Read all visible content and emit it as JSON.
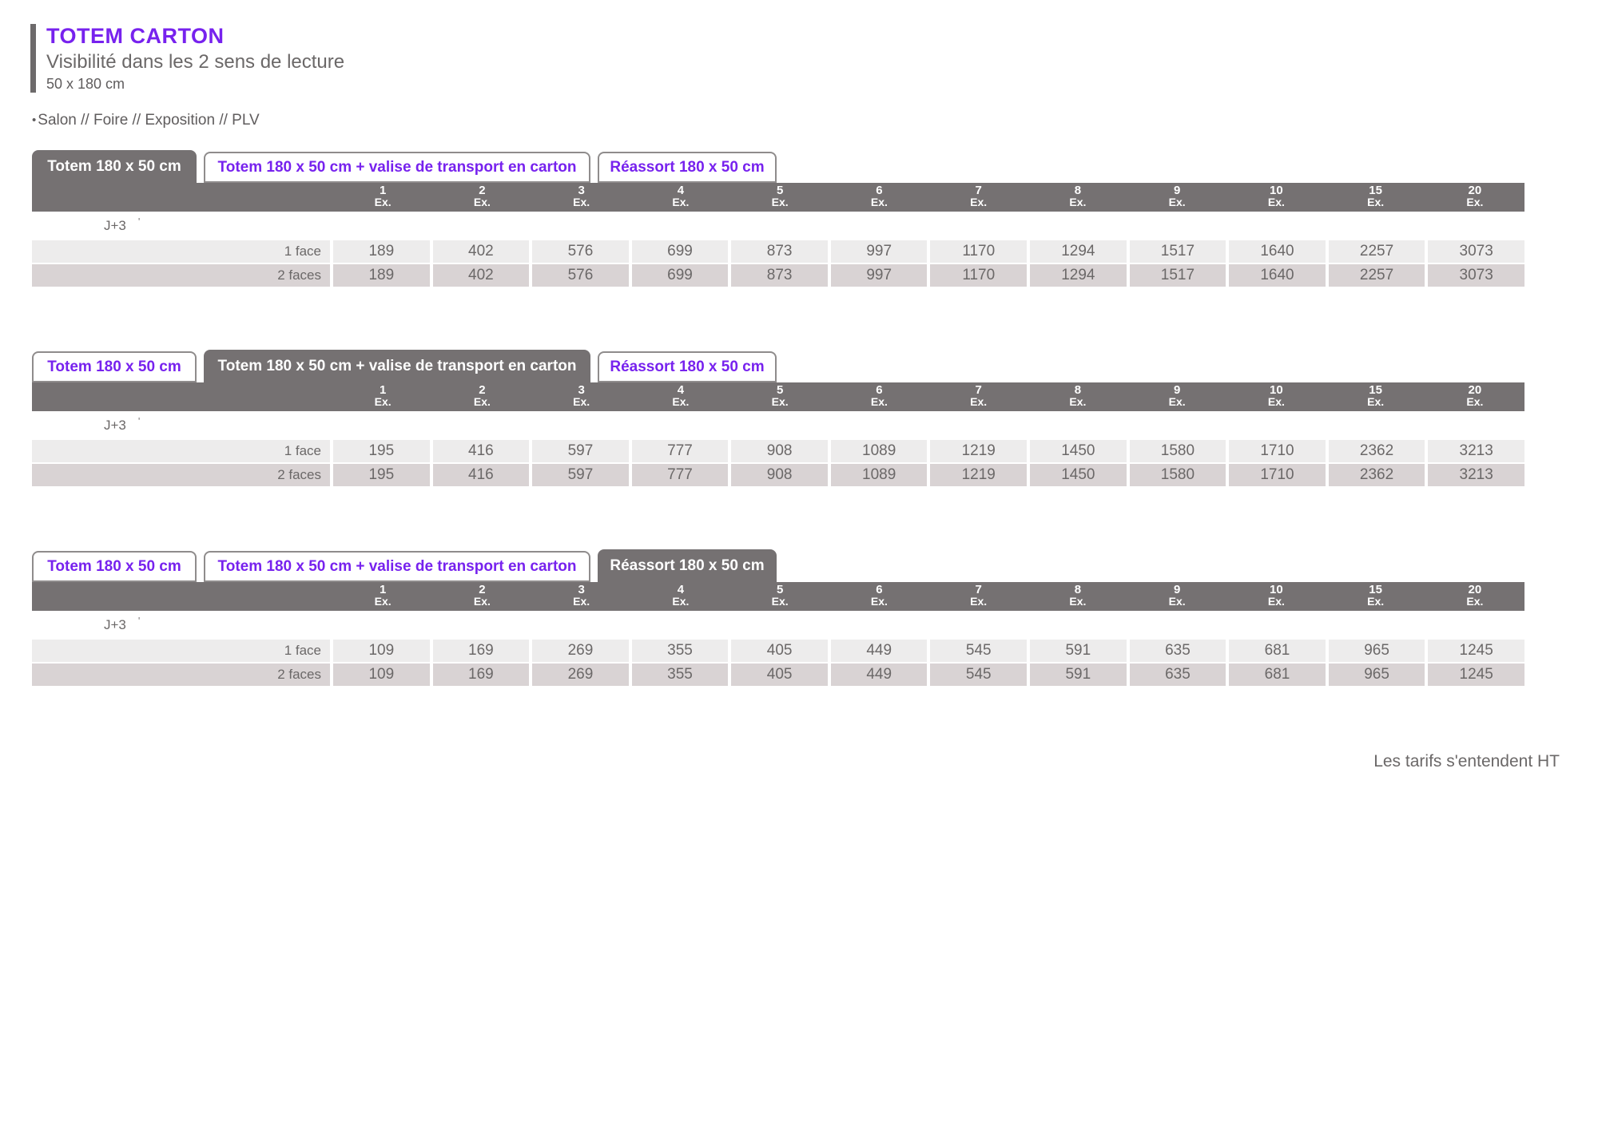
{
  "header": {
    "title": "TOTEM CARTON",
    "subtitle": "Visibilité dans les 2 sens de lecture",
    "size": "50 x 180 cm",
    "bullet": "•",
    "categories": "Salon // Foire // Exposition // PLV"
  },
  "tabs": {
    "labels": [
      "Totem 180 x 50 cm",
      "Totem 180 x 50 cm + valise de transport en carton",
      "Réassort 180 x 50 cm"
    ]
  },
  "columns": {
    "quantities": [
      "1",
      "2",
      "3",
      "4",
      "5",
      "6",
      "7",
      "8",
      "9",
      "10",
      "15",
      "20"
    ],
    "unit": "Ex."
  },
  "delay_label": "J+3",
  "delay_marker": "'",
  "tables": [
    {
      "active_tab": 0,
      "rows": [
        {
          "label": "1 face",
          "values": [
            189,
            402,
            576,
            699,
            873,
            997,
            1170,
            1294,
            1517,
            1640,
            2257,
            3073
          ]
        },
        {
          "label": "2 faces",
          "values": [
            189,
            402,
            576,
            699,
            873,
            997,
            1170,
            1294,
            1517,
            1640,
            2257,
            3073
          ]
        }
      ]
    },
    {
      "active_tab": 1,
      "rows": [
        {
          "label": "1 face",
          "values": [
            195,
            416,
            597,
            777,
            908,
            1089,
            1219,
            1450,
            1580,
            1710,
            2362,
            3213
          ]
        },
        {
          "label": "2 faces",
          "values": [
            195,
            416,
            597,
            777,
            908,
            1089,
            1219,
            1450,
            1580,
            1710,
            2362,
            3213
          ]
        }
      ]
    },
    {
      "active_tab": 2,
      "rows": [
        {
          "label": "1 face",
          "values": [
            109,
            169,
            269,
            355,
            405,
            449,
            545,
            591,
            635,
            681,
            965,
            1245
          ]
        },
        {
          "label": "2 faces",
          "values": [
            109,
            169,
            269,
            355,
            405,
            449,
            545,
            591,
            635,
            681,
            965,
            1245
          ]
        }
      ]
    }
  ],
  "footer": {
    "note": "Les tarifs s'entendent HT"
  },
  "colors": {
    "accent_purple": "#7722ee",
    "tab_gray": "#757172",
    "row_light": "#edecec",
    "row_pink": "#d9d3d4",
    "text_gray": "#6b6868"
  }
}
